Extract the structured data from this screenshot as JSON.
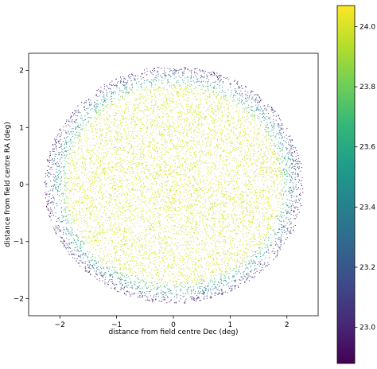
{
  "chart_data": {
    "type": "scatter",
    "xlabel": "distance from field centre Dec (deg)",
    "ylabel": "distance from field centre RA (deg)",
    "xlim": [
      -2.55,
      2.55
    ],
    "ylim": [
      -2.3,
      2.3
    ],
    "x_ticks": [
      -2,
      -1,
      0,
      1,
      2
    ],
    "y_ticks": [
      -2,
      -1,
      0,
      1,
      2
    ],
    "x_tick_labels": [
      "−2",
      "−1",
      "0",
      "1",
      "2"
    ],
    "y_tick_labels": [
      "−2",
      "−1",
      "0",
      "1",
      "2"
    ],
    "grid": false,
    "colorbar": {
      "colormap": "viridis",
      "range": [
        22.88,
        24.07
      ],
      "ticks": [
        23.0,
        23.2,
        23.4,
        23.6,
        23.8,
        24.0
      ],
      "tick_labels": [
        "23.0",
        "23.2",
        "23.4",
        "23.6",
        "23.8",
        "24.0"
      ]
    },
    "distribution": {
      "shape": "ellipse",
      "center": [
        0.0,
        0.0
      ],
      "semi_axis_x": 2.28,
      "semi_axis_y": 2.08,
      "core_value": 24.0,
      "edge_value": 22.9
    }
  },
  "colors": {
    "viridis": [
      "#440154",
      "#482878",
      "#3e4a89",
      "#31688e",
      "#26828e",
      "#1f9e89",
      "#35b779",
      "#6ece58",
      "#b5de2b",
      "#fde725"
    ]
  }
}
